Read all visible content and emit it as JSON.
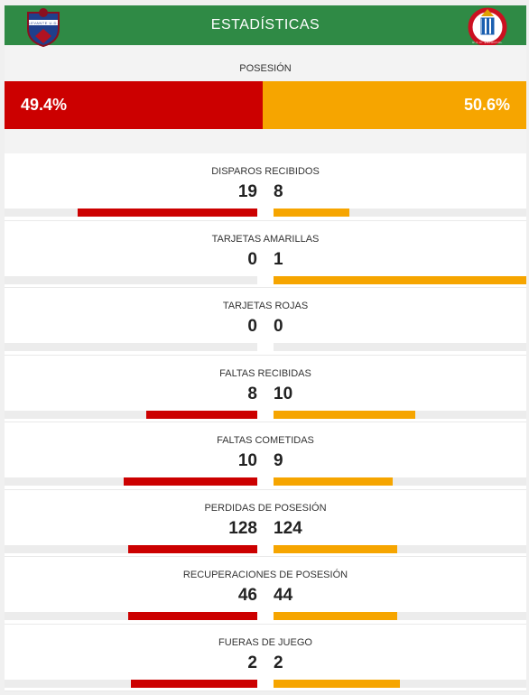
{
  "header": {
    "title": "ESTADÍSTICAS"
  },
  "crests": {
    "home_text": "LEVANTE U.D.",
    "away_text": "R.C.D. ESPANYOL"
  },
  "possession": {
    "label": "POSESIÓN",
    "home": "49.4%",
    "away": "50.6%",
    "home_value": 49.4,
    "away_value": 50.6
  },
  "colors": {
    "home": "#cc0000",
    "away": "#f6a500",
    "header": "#2f8a45"
  },
  "stats": [
    {
      "label": "DISPAROS RECIBIDOS",
      "home": "19",
      "away": "8",
      "home_fill": 0.71,
      "away_fill": 0.3
    },
    {
      "label": "TARJETAS AMARILLAS",
      "home": "0",
      "away": "1",
      "home_fill": 0.0,
      "away_fill": 1.0
    },
    {
      "label": "TARJETAS ROJAS",
      "home": "0",
      "away": "0",
      "home_fill": 0.0,
      "away_fill": 0.0
    },
    {
      "label": "FALTAS RECIBIDAS",
      "home": "8",
      "away": "10",
      "home_fill": 0.44,
      "away_fill": 0.56
    },
    {
      "label": "FALTAS COMETIDAS",
      "home": "10",
      "away": "9",
      "home_fill": 0.53,
      "away_fill": 0.47
    },
    {
      "label": "PERDIDAS DE POSESIÓN",
      "home": "128",
      "away": "124",
      "home_fill": 0.51,
      "away_fill": 0.49
    },
    {
      "label": "RECUPERACIONES DE POSESIÓN",
      "home": "46",
      "away": "44",
      "home_fill": 0.51,
      "away_fill": 0.49
    },
    {
      "label": "FUERAS DE JUEGO",
      "home": "2",
      "away": "2",
      "home_fill": 0.5,
      "away_fill": 0.5
    }
  ]
}
